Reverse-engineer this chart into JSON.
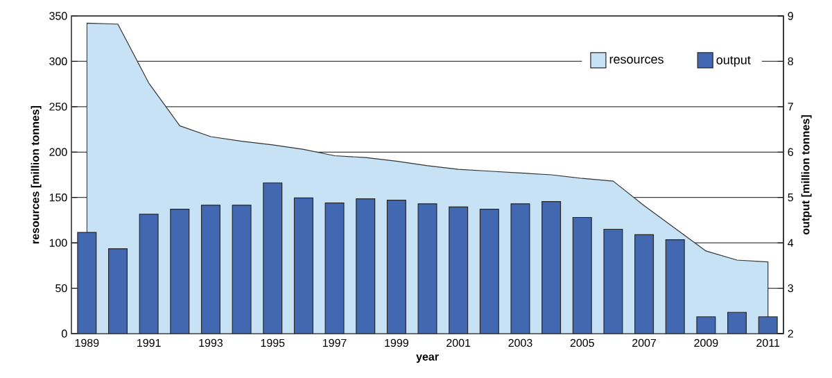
{
  "chart_data": {
    "type": "bar",
    "xlabel": "year",
    "ylabel": "resources [million tonnes]",
    "y2label": "output [million tonnes]",
    "categories": [
      "1989",
      null,
      "1991",
      null,
      "1993",
      null,
      "1995",
      null,
      "1997",
      null,
      "1999",
      null,
      "2001",
      null,
      "2003",
      null,
      "2005",
      null,
      "2007",
      null,
      "2009",
      null,
      "2011"
    ],
    "ylim": [
      0,
      350
    ],
    "yticks": [
      0,
      50,
      100,
      150,
      200,
      250,
      300,
      350
    ],
    "y2lim": [
      2,
      9
    ],
    "y2ticks": [
      2,
      3,
      4,
      5,
      6,
      7,
      8,
      9
    ],
    "grid": "y",
    "legend": "top right",
    "series": [
      {
        "name": "resources",
        "type": "area",
        "color": "#c7e1f5",
        "values": [
          342,
          341,
          276,
          229,
          217,
          212,
          208,
          203,
          196,
          194,
          190,
          185,
          181,
          179,
          177,
          175,
          171,
          168,
          141,
          null,
          91,
          81,
          79
        ]
      },
      {
        "name": "output",
        "axis": "y2",
        "color": "#4268b1",
        "values": [
          4.23,
          3.87,
          4.63,
          4.74,
          4.83,
          4.83,
          5.32,
          4.99,
          4.88,
          4.97,
          4.94,
          4.86,
          4.79,
          4.74,
          4.86,
          4.91,
          4.56,
          4.3,
          4.18,
          4.07,
          2.37,
          2.47,
          2.37
        ]
      }
    ]
  }
}
